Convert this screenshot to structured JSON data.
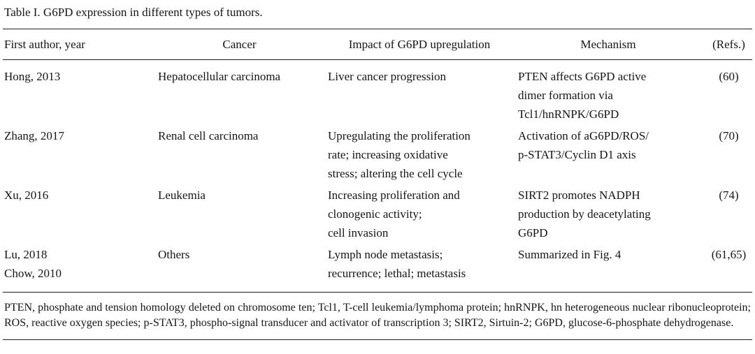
{
  "table": {
    "title": "Table I. G6PD expression in different types of tumors.",
    "headers": {
      "author": "First author, year",
      "cancer": "Cancer",
      "impact": "Impact of G6PD upregulation",
      "mechanism": "Mechanism",
      "refs": "(Refs.)"
    },
    "rows": [
      {
        "author": "Hong, 2013",
        "cancer": "Hepatocellular carcinoma",
        "impact": "Liver cancer progression",
        "mechanism": "PTEN affects G6PD active\ndimer formation via\nTcl1/hnRNPK/G6PD",
        "refs": "(60)"
      },
      {
        "author": "Zhang, 2017",
        "cancer": "Renal cell carcinoma",
        "impact": "Upregulating the proliferation\nrate; increasing oxidative\nstress; altering the cell cycle",
        "mechanism": "Activation of aG6PD/ROS/\np-STAT3/Cyclin D1 axis",
        "refs": "(70)"
      },
      {
        "author": "Xu, 2016",
        "cancer": "Leukemia",
        "impact": "Increasing proliferation and\nclonogenic activity;\ncell invasion",
        "mechanism": "SIRT2 promotes NADPH\nproduction by deacetylating\nG6PD",
        "refs": "(74)"
      },
      {
        "author": "Lu, 2018\nChow, 2010",
        "cancer": "Others",
        "impact": "Lymph node metastasis;\nrecurrence; lethal; metastasis",
        "mechanism": "Summarized in Fig. 4",
        "refs": "(61,65)"
      }
    ],
    "footnote": "PTEN, phosphate and tension homology deleted on chromosome ten; Tcl1, T-cell leukemia/lymphoma protein; hnRNPK, hn heterogeneous nuclear ribonucleoprotein; ROS, reactive oxygen species; p-STAT3, phospho-signal transducer and activator of transcription 3; SIRT2, Sirtuin-2; G6PD, glucose-6-phosphate dehydrogenase."
  }
}
